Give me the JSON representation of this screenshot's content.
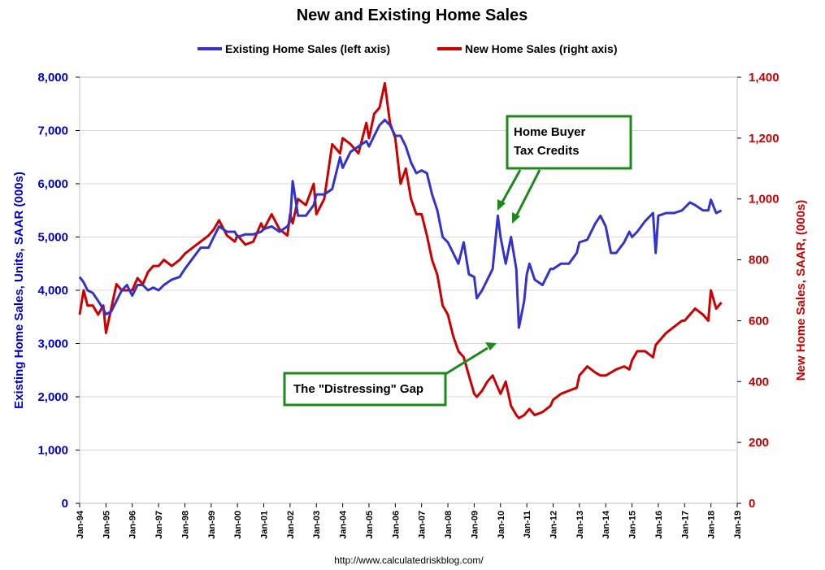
{
  "chart_data": {
    "type": "line",
    "title": "New and Existing Home Sales",
    "source": "http://www.calculatedriskblog.com/",
    "x_ticks": [
      "Jan-94",
      "Jan-95",
      "Jan-96",
      "Jan-97",
      "Jan-98",
      "Jan-99",
      "Jan-00",
      "Jan-01",
      "Jan-02",
      "Jan-03",
      "Jan-04",
      "Jan-05",
      "Jan-06",
      "Jan-07",
      "Jan-08",
      "Jan-09",
      "Jan-10",
      "Jan-11",
      "Jan-12",
      "Jan-13",
      "Jan-14",
      "Jan-15",
      "Jan-16",
      "Jan-17",
      "Jan-18",
      "Jan-19"
    ],
    "xlim": [
      1994.0,
      2019.0
    ],
    "y_left": {
      "label": "Existing Home Sales, Units, SAAR (000s)",
      "range": [
        0,
        8000
      ],
      "ticks": [
        "0",
        "1,000",
        "2,000",
        "3,000",
        "4,000",
        "5,000",
        "6,000",
        "7,000",
        "8,000"
      ],
      "color": "#0000cc"
    },
    "y_right": {
      "label": "New Home Sales, SAAR, (000s)",
      "range": [
        0,
        1400
      ],
      "ticks": [
        "0",
        "200",
        "400",
        "600",
        "800",
        "1,000",
        "1,200",
        "1,400"
      ],
      "color": "#cc0000"
    },
    "grid": true,
    "legend_position": "top",
    "series": [
      {
        "name": "Existing Home Sales (left axis)",
        "axis": "left",
        "color": "#3333cc",
        "points": [
          [
            1994.0,
            4250
          ],
          [
            1994.15,
            4150
          ],
          [
            1994.3,
            4000
          ],
          [
            1994.5,
            3950
          ],
          [
            1994.7,
            3800
          ],
          [
            1994.9,
            3650
          ],
          [
            1995.0,
            3550
          ],
          [
            1995.2,
            3600
          ],
          [
            1995.4,
            3800
          ],
          [
            1995.6,
            4000
          ],
          [
            1995.8,
            4100
          ],
          [
            1996.0,
            3900
          ],
          [
            1996.2,
            4100
          ],
          [
            1996.4,
            4100
          ],
          [
            1996.6,
            4000
          ],
          [
            1996.8,
            4050
          ],
          [
            1997.0,
            4000
          ],
          [
            1997.2,
            4100
          ],
          [
            1997.5,
            4200
          ],
          [
            1997.8,
            4250
          ],
          [
            1998.0,
            4400
          ],
          [
            1998.3,
            4600
          ],
          [
            1998.6,
            4800
          ],
          [
            1998.9,
            4800
          ],
          [
            1999.1,
            5000
          ],
          [
            1999.3,
            5200
          ],
          [
            1999.6,
            5100
          ],
          [
            1999.9,
            5100
          ],
          [
            2000.0,
            5000
          ],
          [
            2000.3,
            5050
          ],
          [
            2000.6,
            5050
          ],
          [
            2000.9,
            5100
          ],
          [
            2001.0,
            5150
          ],
          [
            2001.3,
            5200
          ],
          [
            2001.6,
            5100
          ],
          [
            2001.9,
            5200
          ],
          [
            2002.0,
            5300
          ],
          [
            2002.1,
            6050
          ],
          [
            2002.3,
            5400
          ],
          [
            2002.6,
            5400
          ],
          [
            2002.9,
            5600
          ],
          [
            2003.0,
            5800
          ],
          [
            2003.3,
            5800
          ],
          [
            2003.6,
            5900
          ],
          [
            2003.9,
            6500
          ],
          [
            2004.0,
            6300
          ],
          [
            2004.3,
            6600
          ],
          [
            2004.6,
            6700
          ],
          [
            2004.9,
            6800
          ],
          [
            2005.0,
            6700
          ],
          [
            2005.2,
            6900
          ],
          [
            2005.4,
            7100
          ],
          [
            2005.6,
            7200
          ],
          [
            2005.8,
            7100
          ],
          [
            2006.0,
            6900
          ],
          [
            2006.2,
            6900
          ],
          [
            2006.4,
            6700
          ],
          [
            2006.6,
            6400
          ],
          [
            2006.8,
            6200
          ],
          [
            2007.0,
            6250
          ],
          [
            2007.2,
            6200
          ],
          [
            2007.4,
            5800
          ],
          [
            2007.6,
            5500
          ],
          [
            2007.8,
            5000
          ],
          [
            2008.0,
            4900
          ],
          [
            2008.2,
            4700
          ],
          [
            2008.4,
            4500
          ],
          [
            2008.6,
            4900
          ],
          [
            2008.8,
            4300
          ],
          [
            2009.0,
            4250
          ],
          [
            2009.1,
            3850
          ],
          [
            2009.3,
            4000
          ],
          [
            2009.5,
            4200
          ],
          [
            2009.7,
            4400
          ],
          [
            2009.9,
            5400
          ],
          [
            2010.0,
            5000
          ],
          [
            2010.2,
            4500
          ],
          [
            2010.4,
            5000
          ],
          [
            2010.6,
            4400
          ],
          [
            2010.7,
            3300
          ],
          [
            2010.9,
            3800
          ],
          [
            2011.0,
            4300
          ],
          [
            2011.1,
            4500
          ],
          [
            2011.3,
            4200
          ],
          [
            2011.6,
            4100
          ],
          [
            2011.9,
            4400
          ],
          [
            2012.0,
            4400
          ],
          [
            2012.3,
            4500
          ],
          [
            2012.6,
            4500
          ],
          [
            2012.9,
            4700
          ],
          [
            2013.0,
            4900
          ],
          [
            2013.3,
            4950
          ],
          [
            2013.6,
            5250
          ],
          [
            2013.8,
            5400
          ],
          [
            2014.0,
            5200
          ],
          [
            2014.2,
            4700
          ],
          [
            2014.4,
            4700
          ],
          [
            2014.7,
            4900
          ],
          [
            2014.9,
            5100
          ],
          [
            2015.0,
            5000
          ],
          [
            2015.2,
            5100
          ],
          [
            2015.5,
            5300
          ],
          [
            2015.8,
            5450
          ],
          [
            2015.9,
            4700
          ],
          [
            2016.0,
            5400
          ],
          [
            2016.3,
            5450
          ],
          [
            2016.6,
            5450
          ],
          [
            2016.9,
            5500
          ],
          [
            2017.0,
            5550
          ],
          [
            2017.2,
            5650
          ],
          [
            2017.4,
            5600
          ],
          [
            2017.7,
            5500
          ],
          [
            2017.9,
            5500
          ],
          [
            2018.0,
            5700
          ],
          [
            2018.2,
            5450
          ],
          [
            2018.4,
            5500
          ]
        ]
      },
      {
        "name": "New Home Sales (right axis)",
        "axis": "right",
        "color": "#cc0000",
        "points": [
          [
            1994.0,
            620
          ],
          [
            1994.15,
            700
          ],
          [
            1994.3,
            650
          ],
          [
            1994.5,
            650
          ],
          [
            1994.7,
            620
          ],
          [
            1994.9,
            650
          ],
          [
            1995.0,
            560
          ],
          [
            1995.2,
            640
          ],
          [
            1995.4,
            720
          ],
          [
            1995.6,
            700
          ],
          [
            1995.8,
            700
          ],
          [
            1996.0,
            700
          ],
          [
            1996.2,
            740
          ],
          [
            1996.4,
            720
          ],
          [
            1996.6,
            760
          ],
          [
            1996.8,
            780
          ],
          [
            1997.0,
            780
          ],
          [
            1997.2,
            800
          ],
          [
            1997.5,
            780
          ],
          [
            1997.8,
            800
          ],
          [
            1998.0,
            820
          ],
          [
            1998.3,
            840
          ],
          [
            1998.6,
            860
          ],
          [
            1998.9,
            880
          ],
          [
            1999.1,
            900
          ],
          [
            1999.3,
            930
          ],
          [
            1999.6,
            880
          ],
          [
            1999.9,
            860
          ],
          [
            2000.0,
            880
          ],
          [
            2000.3,
            850
          ],
          [
            2000.6,
            860
          ],
          [
            2000.9,
            920
          ],
          [
            2001.0,
            900
          ],
          [
            2001.3,
            950
          ],
          [
            2001.6,
            900
          ],
          [
            2001.9,
            880
          ],
          [
            2002.0,
            950
          ],
          [
            2002.1,
            920
          ],
          [
            2002.3,
            1000
          ],
          [
            2002.6,
            980
          ],
          [
            2002.9,
            1050
          ],
          [
            2003.0,
            950
          ],
          [
            2003.3,
            1000
          ],
          [
            2003.6,
            1180
          ],
          [
            2003.9,
            1150
          ],
          [
            2004.0,
            1200
          ],
          [
            2004.3,
            1180
          ],
          [
            2004.6,
            1150
          ],
          [
            2004.9,
            1250
          ],
          [
            2005.0,
            1200
          ],
          [
            2005.2,
            1280
          ],
          [
            2005.4,
            1300
          ],
          [
            2005.6,
            1380
          ],
          [
            2005.8,
            1250
          ],
          [
            2006.0,
            1200
          ],
          [
            2006.2,
            1050
          ],
          [
            2006.4,
            1100
          ],
          [
            2006.6,
            1000
          ],
          [
            2006.8,
            950
          ],
          [
            2007.0,
            950
          ],
          [
            2007.2,
            880
          ],
          [
            2007.4,
            800
          ],
          [
            2007.6,
            750
          ],
          [
            2007.8,
            650
          ],
          [
            2008.0,
            620
          ],
          [
            2008.2,
            550
          ],
          [
            2008.4,
            500
          ],
          [
            2008.6,
            480
          ],
          [
            2008.8,
            420
          ],
          [
            2009.0,
            360
          ],
          [
            2009.1,
            350
          ],
          [
            2009.3,
            370
          ],
          [
            2009.5,
            400
          ],
          [
            2009.7,
            420
          ],
          [
            2009.9,
            380
          ],
          [
            2010.0,
            360
          ],
          [
            2010.2,
            400
          ],
          [
            2010.4,
            320
          ],
          [
            2010.6,
            290
          ],
          [
            2010.7,
            280
          ],
          [
            2010.9,
            290
          ],
          [
            2011.0,
            300
          ],
          [
            2011.1,
            310
          ],
          [
            2011.3,
            290
          ],
          [
            2011.6,
            300
          ],
          [
            2011.9,
            320
          ],
          [
            2012.0,
            340
          ],
          [
            2012.3,
            360
          ],
          [
            2012.6,
            370
          ],
          [
            2012.9,
            380
          ],
          [
            2013.0,
            420
          ],
          [
            2013.3,
            450
          ],
          [
            2013.6,
            430
          ],
          [
            2013.8,
            420
          ],
          [
            2014.0,
            420
          ],
          [
            2014.2,
            430
          ],
          [
            2014.4,
            440
          ],
          [
            2014.7,
            450
          ],
          [
            2014.9,
            440
          ],
          [
            2015.0,
            470
          ],
          [
            2015.2,
            500
          ],
          [
            2015.5,
            500
          ],
          [
            2015.8,
            480
          ],
          [
            2015.9,
            520
          ],
          [
            2016.0,
            530
          ],
          [
            2016.3,
            560
          ],
          [
            2016.6,
            580
          ],
          [
            2016.9,
            600
          ],
          [
            2017.0,
            600
          ],
          [
            2017.2,
            620
          ],
          [
            2017.4,
            640
          ],
          [
            2017.7,
            620
          ],
          [
            2017.9,
            600
          ],
          [
            2018.0,
            700
          ],
          [
            2018.2,
            640
          ],
          [
            2018.4,
            660
          ]
        ]
      }
    ],
    "annotations": [
      {
        "name": "home-buyer-tax-credits",
        "lines": [
          "Home Buyer",
          "Tax Credits"
        ]
      },
      {
        "name": "distressing-gap",
        "lines": [
          "The \"Distressing\" Gap"
        ]
      }
    ]
  },
  "colors": {
    "existing": "#3333cc",
    "new": "#cc0000",
    "annotation": "#1a8a1a",
    "grid": "#d9d9d9"
  }
}
